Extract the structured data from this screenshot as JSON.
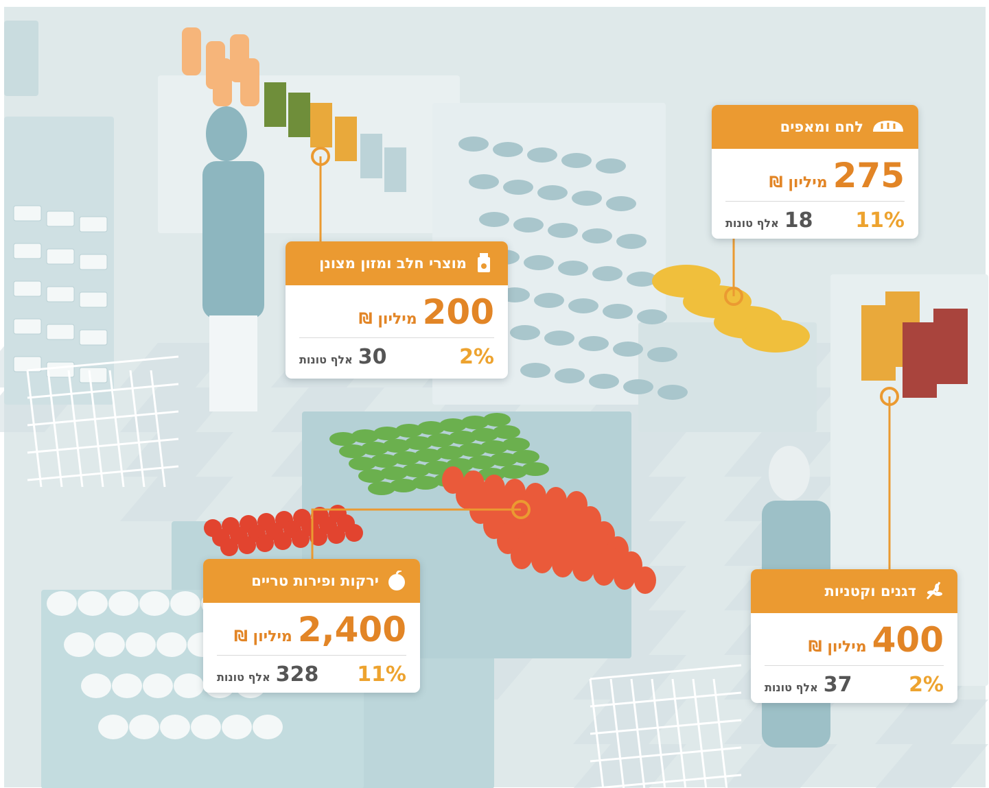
{
  "cards": [
    {
      "title": "מוצרי חלב ומזון מצונן",
      "amount": "200",
      "amount_unit": "מיליון ₪",
      "tons": "30",
      "tons_unit": "אלף טונות",
      "share": "2%"
    },
    {
      "title": "לחם ומאפים",
      "amount": "275",
      "amount_unit": "מיליון ₪",
      "tons": "18",
      "tons_unit": "אלף טונות",
      "share": "11%"
    },
    {
      "title": "ירקות ופירות טריים",
      "amount": "2,400",
      "amount_unit": "מיליון ₪",
      "tons": "328",
      "tons_unit": "אלף טונות",
      "share": "11%"
    },
    {
      "title": "דגנים וקטניות",
      "amount": "400",
      "amount_unit": "מיליון ₪",
      "tons": "37",
      "tons_unit": "אלף טונות",
      "share": "2%"
    }
  ]
}
